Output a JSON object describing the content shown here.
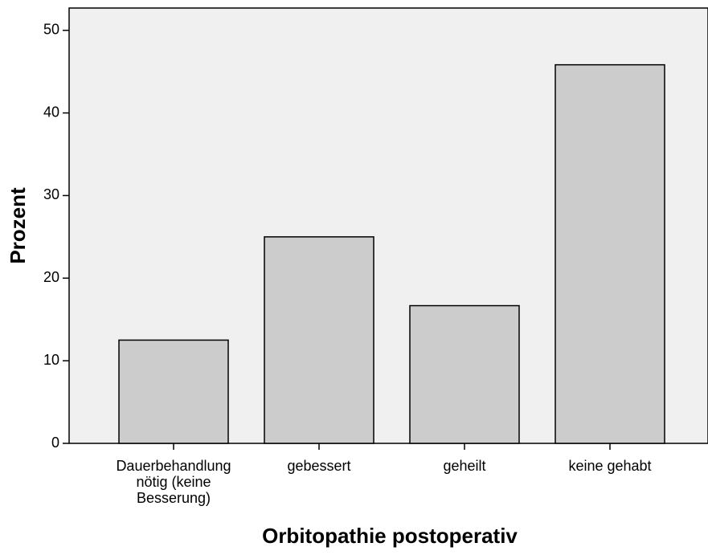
{
  "chart_data": {
    "type": "bar",
    "x_label": "Orbitopathie postoperativ",
    "y_label": "Prozent",
    "categories": [
      "Dauerbehandlung nötig (keine Besserung)",
      "gebessert",
      "geheilt",
      "keine gehabt"
    ],
    "values": [
      12.5,
      25,
      16.67,
      45.83
    ],
    "color": "#cccccc",
    "ylim": [
      0,
      52.7
    ],
    "yticks": [
      0,
      10,
      20,
      30,
      40,
      50
    ],
    "grid": false
  }
}
